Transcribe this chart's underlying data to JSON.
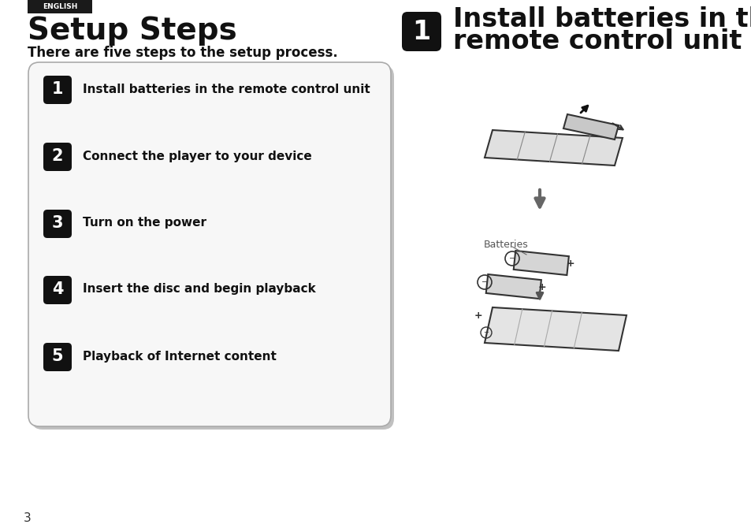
{
  "bg_color": "#ffffff",
  "english_label": "ENGLISH",
  "english_bg": "#1a1a1a",
  "english_color": "#ffffff",
  "title": "Setup Steps",
  "subtitle": "There are five steps to the setup process.",
  "steps": [
    {
      "num": "1",
      "text": "Install batteries in the remote control unit"
    },
    {
      "num": "2",
      "text": "Connect the player to your device"
    },
    {
      "num": "3",
      "text": "Turn on the power"
    },
    {
      "num": "4",
      "text": "Insert the disc and begin playback"
    },
    {
      "num": "5",
      "text": "Playback of Internet content"
    }
  ],
  "right_title_num": "1",
  "right_title_line1": "Install batteries in the",
  "right_title_line2": "remote control unit",
  "page_num": "3",
  "box_color": "#111111",
  "box_text_color": "#ffffff",
  "panel_bg": "#f7f7f7",
  "panel_border": "#aaaaaa",
  "batteries_label": "Batteries"
}
